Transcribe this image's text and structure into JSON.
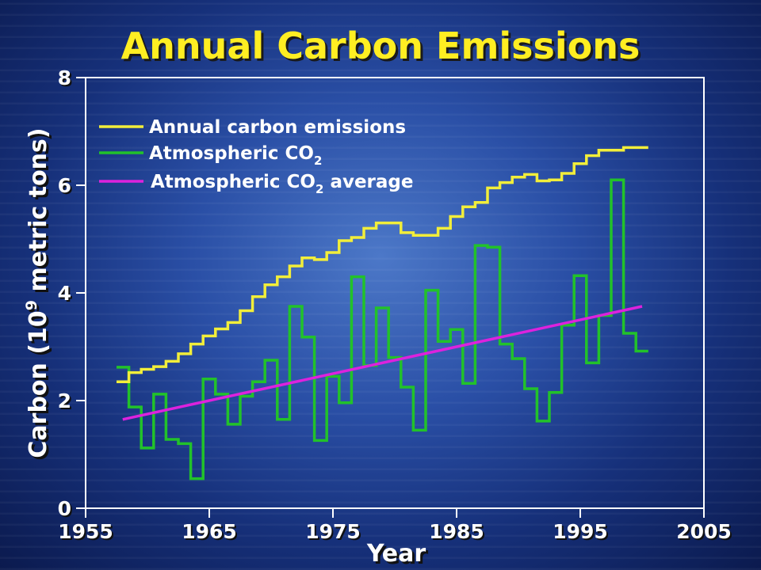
{
  "chart_data": {
    "type": "line",
    "title": "Annual Carbon Emissions",
    "xlabel": "Year",
    "ylabel": "Carbon (10",
    "ylabel_superscript": "9",
    "ylabel_suffix": " metric tons)",
    "xlim": [
      1955,
      2005
    ],
    "ylim": [
      0,
      8
    ],
    "xticks": [
      1955,
      1965,
      1975,
      1985,
      1995,
      2005
    ],
    "yticks": [
      0,
      2,
      4,
      6,
      8
    ],
    "legend_position": "top-left",
    "legend": [
      {
        "key": "emissions",
        "text": "Annual carbon emissions",
        "sub": "",
        "suffix": ""
      },
      {
        "key": "co2",
        "text": "Atmospheric CO",
        "sub": "2",
        "suffix": ""
      },
      {
        "key": "co2_avg",
        "text": "Atmospheric CO",
        "sub": "2",
        "suffix": " average"
      }
    ],
    "series": [
      {
        "key": "emissions",
        "style": "step",
        "color": "#f2ee3a",
        "x": [
          1958,
          1959,
          1960,
          1961,
          1962,
          1963,
          1964,
          1965,
          1966,
          1967,
          1968,
          1969,
          1970,
          1971,
          1972,
          1973,
          1974,
          1975,
          1976,
          1977,
          1978,
          1979,
          1980,
          1981,
          1982,
          1983,
          1984,
          1985,
          1986,
          1987,
          1988,
          1989,
          1990,
          1991,
          1992,
          1993,
          1994,
          1995,
          1996,
          1997,
          1998,
          1999,
          2000
        ],
        "values": [
          2.35,
          2.52,
          2.58,
          2.63,
          2.73,
          2.87,
          3.05,
          3.2,
          3.33,
          3.45,
          3.67,
          3.93,
          4.15,
          4.3,
          4.5,
          4.65,
          4.62,
          4.75,
          4.97,
          5.03,
          5.2,
          5.3,
          5.3,
          5.12,
          5.07,
          5.07,
          5.2,
          5.42,
          5.6,
          5.68,
          5.95,
          6.05,
          6.15,
          6.2,
          6.08,
          6.1,
          6.22,
          6.4,
          6.55,
          6.65,
          6.65,
          6.7,
          6.7
        ]
      },
      {
        "key": "co2",
        "style": "step",
        "color": "#22c22a",
        "x": [
          1958,
          1959,
          1960,
          1961,
          1962,
          1963,
          1964,
          1965,
          1966,
          1967,
          1968,
          1969,
          1970,
          1971,
          1972,
          1973,
          1974,
          1975,
          1976,
          1977,
          1978,
          1979,
          1980,
          1981,
          1982,
          1983,
          1984,
          1985,
          1986,
          1987,
          1988,
          1989,
          1990,
          1991,
          1992,
          1993,
          1994,
          1995,
          1996,
          1997,
          1998,
          1999,
          2000
        ],
        "values": [
          2.62,
          1.88,
          1.12,
          2.12,
          1.28,
          1.2,
          0.55,
          2.4,
          2.12,
          1.56,
          2.08,
          2.35,
          2.75,
          1.65,
          3.75,
          3.18,
          1.26,
          2.45,
          1.96,
          4.3,
          2.65,
          3.72,
          2.8,
          2.25,
          1.45,
          4.05,
          3.1,
          3.32,
          2.32,
          4.88,
          4.85,
          3.05,
          2.78,
          2.22,
          1.62,
          2.15,
          3.4,
          4.32,
          2.7,
          3.58,
          6.1,
          3.25,
          2.92
        ]
      },
      {
        "key": "co2_avg",
        "style": "line",
        "color": "#dd22dd",
        "x": [
          1958,
          2000
        ],
        "values": [
          1.65,
          3.75
        ]
      }
    ]
  }
}
